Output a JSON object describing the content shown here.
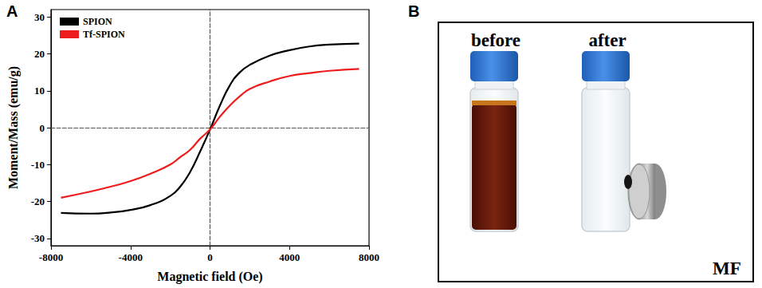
{
  "panel_labels": [
    "A",
    "B"
  ],
  "chart_data": {
    "type": "line",
    "xlabel": "Magnetic field (Oe)",
    "ylabel": "Moment/Mass (emu/g)",
    "x": [
      -7500,
      -6000,
      -5000,
      -4000,
      -3000,
      -2000,
      -1500,
      -1000,
      -500,
      0,
      500,
      1000,
      1500,
      2000,
      3000,
      4000,
      5000,
      6000,
      7500
    ],
    "series": [
      {
        "name": "SPION",
        "color": "#000000",
        "values": [
          -23.1,
          -23.3,
          -23.0,
          -22.3,
          -21.0,
          -18.5,
          -16.0,
          -12.0,
          -6.5,
          -0.5,
          6.0,
          11.5,
          15.0,
          17.0,
          19.5,
          21.0,
          22.0,
          22.5,
          22.8
        ]
      },
      {
        "name": "Tf-SPION",
        "color": "#ee1c1c",
        "values": [
          -19.0,
          -17.3,
          -16.0,
          -14.5,
          -12.5,
          -10.0,
          -8.0,
          -6.0,
          -3.0,
          -0.5,
          3.0,
          6.0,
          8.5,
          10.5,
          12.5,
          14.0,
          14.8,
          15.4,
          15.9
        ]
      }
    ],
    "xlim": [
      -8000,
      8000
    ],
    "xticks": [
      -8000,
      -4000,
      0,
      4000,
      8000
    ],
    "ylim": [
      -32,
      32
    ],
    "yticks": [
      -30,
      -20,
      -10,
      0,
      10,
      20,
      30
    ],
    "grid": false,
    "legend": "upper left"
  },
  "photo": {
    "labels": [
      "before",
      "after"
    ],
    "magnet_label": "MF"
  }
}
